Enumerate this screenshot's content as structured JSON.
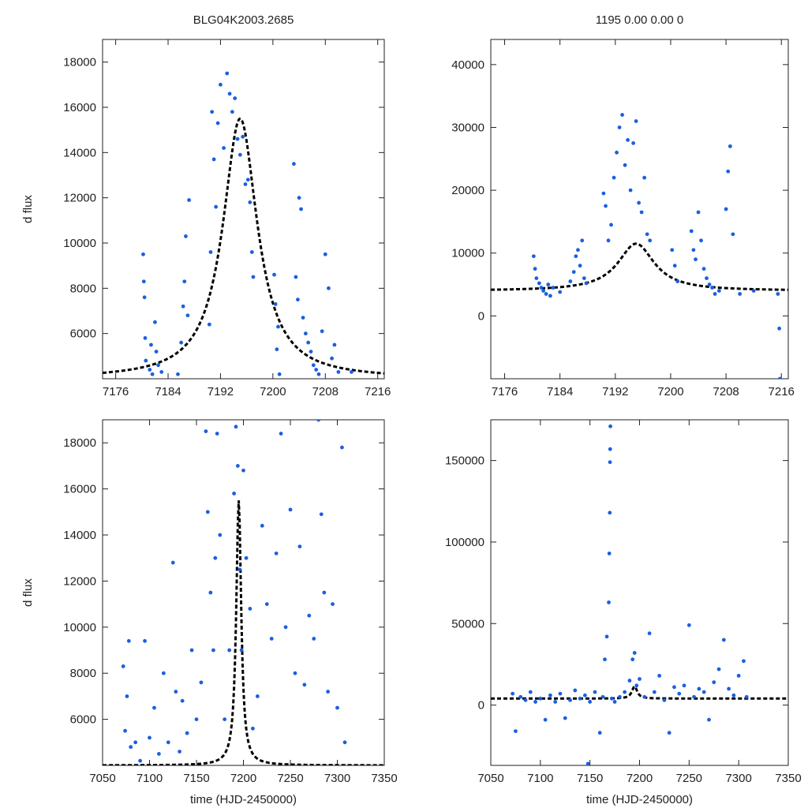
{
  "figure": {
    "ylabel": "d flux",
    "xlabel": "time (HJD-2450000)"
  },
  "chart_data": [
    {
      "type": "scatter",
      "panel": "top-left",
      "title": "BLG04K2003.2685",
      "xlabel": "",
      "ylabel": "d flux",
      "xlim": [
        7174,
        7217
      ],
      "ylim": [
        4000,
        19000
      ],
      "xticks": [
        7176,
        7184,
        7192,
        7200,
        7208,
        7216
      ],
      "yticks": [
        6000,
        8000,
        10000,
        12000,
        14000,
        16000,
        18000
      ],
      "point_color": "#1a5fe0",
      "model": {
        "style": "black dashed",
        "t0": 7195.0,
        "width": 3.2,
        "peak": 15500,
        "base": 4000
      },
      "series": [
        {
          "name": "observations",
          "x": [
            7180.2,
            7180.3,
            7180.4,
            7180.5,
            7180.6,
            7181.2,
            7181.4,
            7181.6,
            7182.0,
            7182.2,
            7182.5,
            7183.0,
            7185.5,
            7186.0,
            7186.3,
            7186.5,
            7186.7,
            7187.0,
            7187.2,
            7190.3,
            7190.5,
            7190.7,
            7191.0,
            7191.3,
            7191.6,
            7192.0,
            7192.5,
            7193.0,
            7193.4,
            7193.8,
            7194.2,
            7194.6,
            7195.0,
            7195.4,
            7195.8,
            7196.2,
            7196.5,
            7196.8,
            7197.0,
            7200.2,
            7200.4,
            7200.6,
            7200.8,
            7201.0,
            7203.2,
            7203.5,
            7203.8,
            7204.0,
            7204.3,
            7204.6,
            7205.0,
            7205.4,
            7205.8,
            7206.2,
            7206.6,
            7207.0,
            7207.5,
            7208.0,
            7208.5,
            7209.0,
            7209.4,
            7210.0,
            7212.0
          ],
          "y": [
            9500,
            8300,
            7600,
            5800,
            4800,
            4400,
            5500,
            4200,
            6500,
            5200,
            4600,
            4300,
            4200,
            5600,
            7200,
            8300,
            10300,
            6800,
            11900,
            6400,
            9600,
            15800,
            13700,
            11600,
            15300,
            17000,
            14200,
            17500,
            16600,
            15800,
            16400,
            14600,
            13900,
            14700,
            12600,
            12800,
            11800,
            9600,
            8500,
            8600,
            7300,
            5300,
            6300,
            4200,
            13500,
            8500,
            7500,
            12000,
            11500,
            6700,
            6000,
            5600,
            5200,
            4600,
            4400,
            4200,
            6100,
            9500,
            8000,
            4900,
            5500,
            4300,
            4300
          ]
        }
      ]
    },
    {
      "type": "scatter",
      "panel": "top-right",
      "title": "1195  0.00  0.00  0",
      "xlabel": "",
      "ylabel": "",
      "xlim": [
        7174,
        7217
      ],
      "ylim": [
        -10000,
        44000
      ],
      "xticks": [
        7176,
        7184,
        7192,
        7200,
        7208,
        7216
      ],
      "yticks": [
        0,
        10000,
        20000,
        30000,
        40000
      ],
      "point_color": "#1a5fe0",
      "model": {
        "style": "black dashed",
        "t0": 7195.0,
        "width": 3.2,
        "peak": 11500,
        "base": 4000
      },
      "series": [
        {
          "name": "observations",
          "x": [
            7180.2,
            7180.4,
            7180.6,
            7181.0,
            7181.3,
            7181.6,
            7182.0,
            7182.3,
            7182.6,
            7183.0,
            7184.0,
            7185.5,
            7186.0,
            7186.3,
            7186.6,
            7186.9,
            7187.2,
            7187.5,
            7187.8,
            7190.3,
            7190.6,
            7191.0,
            7191.4,
            7191.8,
            7192.2,
            7192.6,
            7193.0,
            7193.4,
            7193.8,
            7194.2,
            7194.6,
            7195.0,
            7195.4,
            7195.8,
            7196.2,
            7196.6,
            7197.0,
            7200.2,
            7200.6,
            7201.0,
            7203.0,
            7203.3,
            7203.6,
            7204.0,
            7204.4,
            7204.8,
            7205.2,
            7205.6,
            7206.0,
            7206.4,
            7207.0,
            7208.0,
            7208.3,
            7208.6,
            7209.0,
            7210.0,
            7212.0,
            7215.5,
            7215.7,
            7215.8
          ],
          "y": [
            9500,
            7500,
            6000,
            5200,
            4500,
            4000,
            3500,
            5000,
            3200,
            4500,
            3800,
            5500,
            7000,
            9500,
            10500,
            8000,
            12000,
            6000,
            5200,
            19500,
            17500,
            12000,
            14500,
            22000,
            26000,
            30000,
            32000,
            24000,
            28000,
            20000,
            27500,
            31000,
            18000,
            16500,
            22000,
            13000,
            12000,
            10500,
            8000,
            5500,
            13500,
            10500,
            9000,
            16500,
            12000,
            7500,
            6000,
            5000,
            4500,
            3500,
            4000,
            17000,
            23000,
            27000,
            13000,
            3500,
            4000,
            3500,
            -2000,
            -10000
          ]
        }
      ]
    },
    {
      "type": "scatter",
      "panel": "bottom-left",
      "title": "",
      "xlabel": "time (HJD-2450000)",
      "ylabel": "d flux",
      "xlim": [
        7050,
        7350
      ],
      "ylim": [
        4000,
        19000
      ],
      "xticks": [
        7050,
        7100,
        7150,
        7200,
        7250,
        7300,
        7350
      ],
      "yticks": [
        6000,
        8000,
        10000,
        12000,
        14000,
        16000,
        18000
      ],
      "point_color": "#1a5fe0",
      "model": {
        "style": "black dashed",
        "t0": 7195.0,
        "width": 3.2,
        "peak": 15500,
        "base": 4000
      },
      "series": [
        {
          "name": "observations",
          "x": [
            7072,
            7074,
            7076,
            7078,
            7080,
            7085,
            7090,
            7095,
            7100,
            7105,
            7110,
            7115,
            7120,
            7125,
            7128,
            7132,
            7135,
            7140,
            7145,
            7150,
            7155,
            7160,
            7162,
            7165,
            7168,
            7170,
            7172,
            7175,
            7180,
            7185,
            7190,
            7192,
            7194,
            7196,
            7198,
            7200,
            7203,
            7207,
            7210,
            7215,
            7220,
            7225,
            7230,
            7235,
            7240,
            7245,
            7250,
            7255,
            7260,
            7265,
            7270,
            7275,
            7280,
            7283,
            7286,
            7290,
            7295,
            7300,
            7305,
            7308
          ],
          "y": [
            8300,
            5500,
            7000,
            9400,
            4800,
            5000,
            4200,
            9400,
            5200,
            6500,
            4500,
            8000,
            5000,
            12800,
            7200,
            4600,
            6800,
            5400,
            9000,
            6000,
            7600,
            18500,
            15000,
            11500,
            9000,
            13000,
            18400,
            14000,
            6000,
            9000,
            15800,
            18700,
            17000,
            12500,
            9000,
            16800,
            13000,
            10800,
            5600,
            7000,
            14400,
            11000,
            9500,
            13200,
            18400,
            10000,
            15100,
            8000,
            13500,
            7500,
            10500,
            9500,
            19000,
            14900,
            11500,
            7200,
            11000,
            6500,
            17800,
            5000
          ]
        }
      ]
    },
    {
      "type": "scatter",
      "panel": "bottom-right",
      "title": "",
      "xlabel": "time (HJD-2450000)",
      "ylabel": "",
      "xlim": [
        7050,
        7350
      ],
      "ylim": [
        -37000,
        175000
      ],
      "xticks": [
        7050,
        7100,
        7150,
        7200,
        7250,
        7300,
        7350
      ],
      "yticks": [
        0,
        50000,
        100000,
        150000
      ],
      "point_color": "#1a5fe0",
      "model": {
        "style": "black dashed",
        "t0": 7195.0,
        "width": 3.2,
        "peak": 11500,
        "base": 4000
      },
      "series": [
        {
          "name": "observations",
          "x": [
            7072,
            7075,
            7080,
            7085,
            7090,
            7095,
            7100,
            7105,
            7110,
            7115,
            7120,
            7125,
            7130,
            7135,
            7140,
            7145,
            7148,
            7150,
            7155,
            7160,
            7163,
            7165,
            7167,
            7169,
            7169.5,
            7170,
            7170.2,
            7170.4,
            7170.6,
            7172,
            7175,
            7180,
            7185,
            7190,
            7193,
            7195,
            7197,
            7200,
            7205,
            7210,
            7215,
            7220,
            7225,
            7230,
            7235,
            7240,
            7245,
            7250,
            7255,
            7260,
            7265,
            7270,
            7275,
            7280,
            7285,
            7290,
            7295,
            7300,
            7305,
            7308
          ],
          "y": [
            7000,
            -16000,
            5000,
            3000,
            8000,
            2000,
            4000,
            -9000,
            6000,
            2000,
            7000,
            -8000,
            3000,
            9000,
            4000,
            6000,
            -36000,
            2000,
            8000,
            -17000,
            5000,
            28000,
            42000,
            63000,
            93000,
            118000,
            149000,
            157000,
            171000,
            4000,
            2000,
            5000,
            8000,
            15000,
            28000,
            32000,
            12000,
            16000,
            5000,
            44000,
            8000,
            18000,
            3000,
            -17000,
            11000,
            7000,
            12000,
            49000,
            5000,
            10000,
            8000,
            -9000,
            14000,
            22000,
            40000,
            10000,
            6000,
            18000,
            27000,
            5000
          ]
        }
      ]
    }
  ]
}
